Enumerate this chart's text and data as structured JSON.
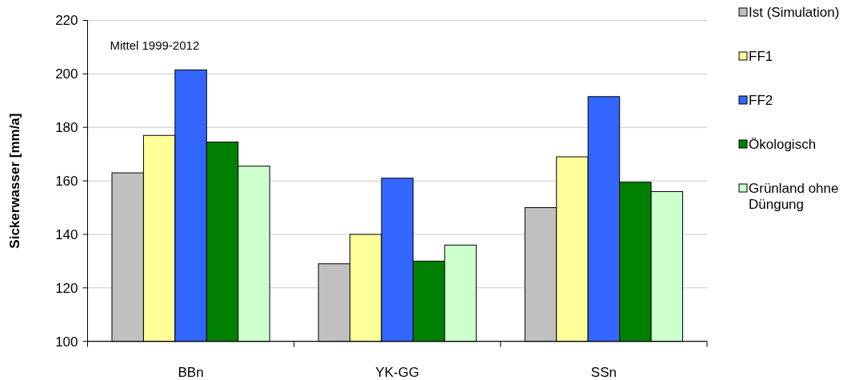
{
  "chart_data": {
    "type": "bar",
    "ylabel": "Sickerwasser [mm/a]",
    "annotations": [
      "Mittel 1999-2012"
    ],
    "categories": [
      "BBn",
      "YK-GG",
      "SSn"
    ],
    "series": [
      {
        "name": "Ist (Simulation)",
        "color": "#c0c0c0",
        "values": [
          163,
          129,
          150
        ]
      },
      {
        "name": "FF1",
        "color": "#ffff99",
        "values": [
          177,
          140,
          169
        ]
      },
      {
        "name": "FF2",
        "color": "#3366ff",
        "values": [
          201.5,
          161,
          191.5
        ]
      },
      {
        "name": "Ökologisch",
        "color": "#008000",
        "values": [
          174.5,
          130,
          159.5
        ]
      },
      {
        "name": "Grünland ohne Düngung",
        "color": "#ccffcc",
        "values": [
          165.5,
          136,
          156
        ]
      }
    ],
    "ylim": [
      100,
      220
    ],
    "yticks": [
      100,
      120,
      140,
      160,
      180,
      200,
      220
    ],
    "grid": "y",
    "legend": "right"
  }
}
